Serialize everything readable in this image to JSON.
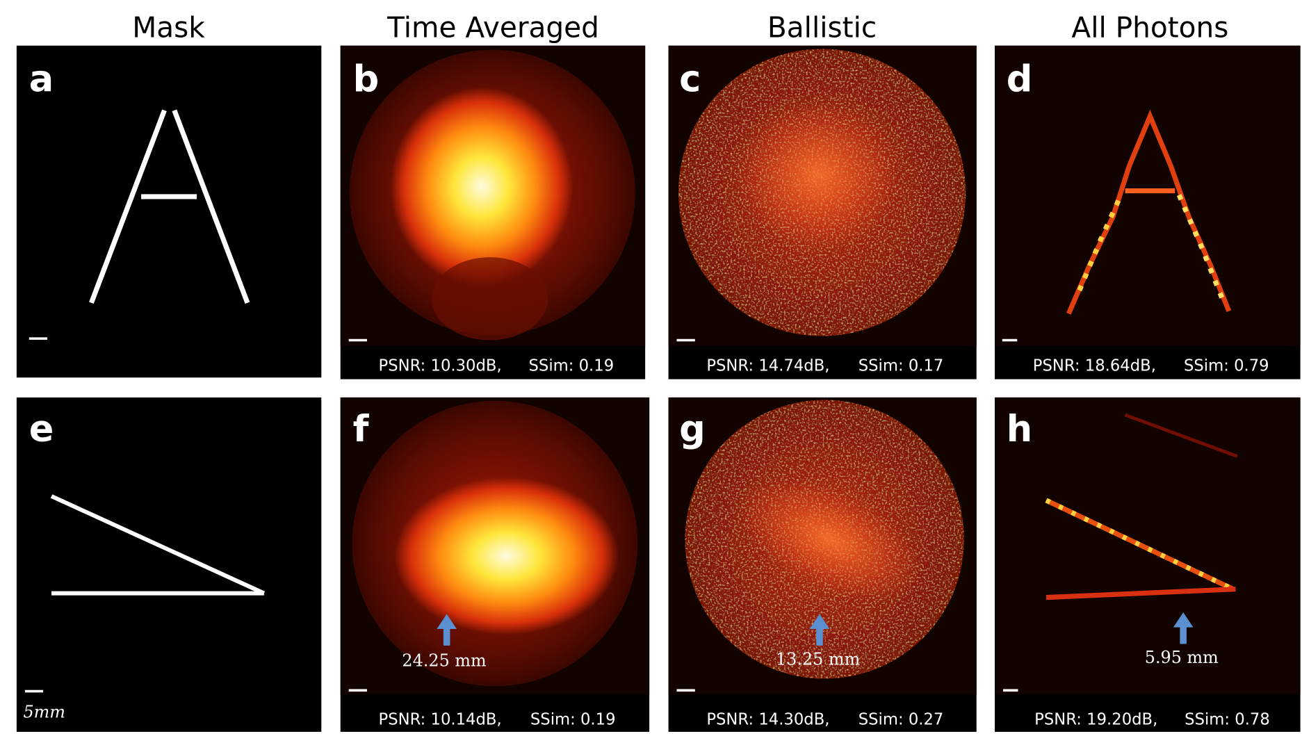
{
  "columns": [
    "Mask",
    "Time Averaged",
    "Ballistic",
    "All Photons"
  ],
  "panels": [
    {
      "letter": "a"
    },
    {
      "letter": "b",
      "psnr": "PSNR: 10.30dB,",
      "ssim": "SSim: 0.19"
    },
    {
      "letter": "c",
      "psnr": "PSNR: 14.74dB,",
      "ssim": "SSim: 0.17"
    },
    {
      "letter": "d",
      "psnr": "PSNR: 18.64dB,",
      "ssim": "SSim: 0.79"
    },
    {
      "letter": "e",
      "scale_label": "5mm"
    },
    {
      "letter": "f",
      "psnr": "PSNR: 10.14dB,",
      "ssim": "SSim: 0.19",
      "measurement": "24.25 mm"
    },
    {
      "letter": "g",
      "psnr": "PSNR: 14.30dB,",
      "ssim": "SSim: 0.27",
      "measurement": "13.25 mm"
    },
    {
      "letter": "h",
      "psnr": "PSNR: 19.20dB,",
      "ssim": "SSim: 0.78",
      "measurement": "5.95 mm"
    }
  ]
}
